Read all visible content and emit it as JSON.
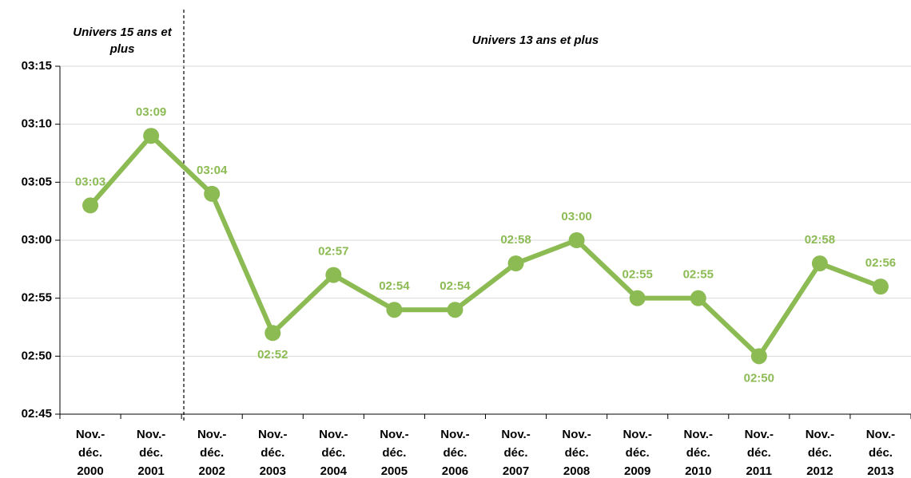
{
  "chart_data": {
    "type": "line",
    "annotations": [
      "Univers  15 ans et plus",
      "Univers  13 ans et plus"
    ],
    "categories": [
      "Nov.-déc. 2000",
      "Nov.-déc. 2001",
      "Nov.-déc. 2002",
      "Nov.-déc. 2003",
      "Nov.-déc. 2004",
      "Nov.-déc. 2005",
      "Nov.-déc. 2006",
      "Nov.-déc. 2007",
      "Nov.-déc. 2008",
      "Nov.-déc. 2009",
      "Nov.-déc. 2010",
      "Nov.-déc. 2011",
      "Nov.-déc. 2012",
      "Nov.-déc. 2013"
    ],
    "values": [
      183,
      189,
      184,
      172,
      177,
      174,
      174,
      178,
      180,
      175,
      175,
      170,
      178,
      176
    ],
    "value_labels": [
      "03:03",
      "03:09",
      "03:04",
      "02:52",
      "02:57",
      "02:54",
      "02:54",
      "02:58",
      "03:00",
      "02:55",
      "02:55",
      "02:50",
      "02:58",
      "02:56"
    ],
    "color": "#8cbb54",
    "ylim": [
      165,
      195
    ],
    "yticks": [
      {
        "value": 165,
        "label": "02:45"
      },
      {
        "value": 170,
        "label": "02:50"
      },
      {
        "value": 175,
        "label": "02:55"
      },
      {
        "value": 180,
        "label": "03:00"
      },
      {
        "value": 185,
        "label": "03:05"
      },
      {
        "value": 190,
        "label": "03:10"
      },
      {
        "value": 195,
        "label": "03:15"
      }
    ],
    "grid": true
  }
}
